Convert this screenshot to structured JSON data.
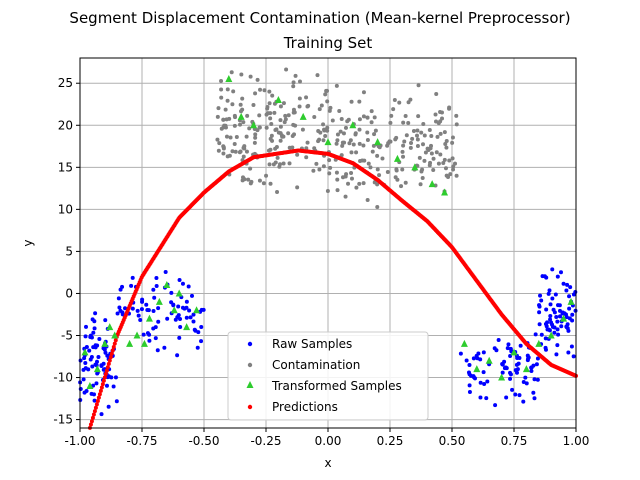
{
  "chart_data": {
    "type": "scatter",
    "title": "Segment Displacement Contamination (Mean-kernel Preprocessor)",
    "subtitle": "Training Set",
    "xlabel": "x",
    "ylabel": "y",
    "xlim": [
      -1.0,
      1.0
    ],
    "ylim": [
      -16,
      28
    ],
    "grid": true,
    "x_ticks": [
      "-1.00",
      "-0.75",
      "-0.50",
      "-0.25",
      "0.00",
      "0.25",
      "0.50",
      "0.75",
      "1.00"
    ],
    "y_ticks": [
      "-15",
      "-10",
      "-5",
      "0",
      "5",
      "10",
      "15",
      "20",
      "25"
    ],
    "legend": {
      "placement": "lower-center",
      "entries": [
        "Raw Samples",
        "Contamination",
        "Transformed Samples",
        "Predictions"
      ]
    },
    "series": [
      {
        "name": "Raw Samples",
        "color": "#0000ff",
        "marker": "circle",
        "clusters": [
          {
            "x_range": [
              -1.0,
              -0.85
            ],
            "y_range": [
              -15,
              -2
            ]
          },
          {
            "x_range": [
              -0.85,
              -0.5
            ],
            "y_range": [
              -8,
              4
            ]
          },
          {
            "x_range": [
              0.53,
              0.85
            ],
            "y_range": [
              -14,
              -4
            ]
          },
          {
            "x_range": [
              0.85,
              1.0
            ],
            "y_range": [
              -8,
              3
            ]
          }
        ]
      },
      {
        "name": "Contamination",
        "color": "#808080",
        "marker": "circle",
        "clusters": [
          {
            "x_range": [
              -0.45,
              0.0
            ],
            "y_range": [
              11,
              28
            ]
          },
          {
            "x_range": [
              0.0,
              0.52
            ],
            "y_range": [
              10,
              25
            ]
          }
        ]
      },
      {
        "name": "Transformed Samples",
        "color": "#2ecc2e",
        "marker": "triangle",
        "points": [
          [
            -0.98,
            -7
          ],
          [
            -0.96,
            -11
          ],
          [
            -0.93,
            -9
          ],
          [
            -0.9,
            -6
          ],
          [
            -0.88,
            -4
          ],
          [
            -0.86,
            -5
          ],
          [
            -0.8,
            -6
          ],
          [
            -0.77,
            -5
          ],
          [
            -0.74,
            -6
          ],
          [
            -0.72,
            -3
          ],
          [
            -0.68,
            -1
          ],
          [
            -0.65,
            1
          ],
          [
            -0.62,
            -2
          ],
          [
            -0.6,
            0
          ],
          [
            -0.57,
            -4
          ],
          [
            -0.53,
            -2
          ],
          [
            -0.4,
            25.5
          ],
          [
            -0.35,
            21
          ],
          [
            -0.3,
            20
          ],
          [
            -0.2,
            23
          ],
          [
            -0.1,
            21
          ],
          [
            0.0,
            18
          ],
          [
            0.1,
            20
          ],
          [
            0.2,
            18
          ],
          [
            0.28,
            16
          ],
          [
            0.35,
            15
          ],
          [
            0.42,
            13
          ],
          [
            0.47,
            12
          ],
          [
            0.55,
            -6
          ],
          [
            0.6,
            -9
          ],
          [
            0.65,
            -8
          ],
          [
            0.7,
            -10
          ],
          [
            0.75,
            -7
          ],
          [
            0.8,
            -9
          ],
          [
            0.85,
            -6
          ],
          [
            0.9,
            -5
          ],
          [
            0.95,
            -3
          ],
          [
            0.98,
            -1
          ]
        ]
      },
      {
        "name": "Predictions",
        "color": "#ff0000",
        "marker": "circle",
        "x_range": [
          -1.0,
          1.0
        ],
        "curve": [
          [
            -0.95,
            -15
          ],
          [
            -0.85,
            -5
          ],
          [
            -0.75,
            2
          ],
          [
            -0.6,
            9
          ],
          [
            -0.5,
            12
          ],
          [
            -0.4,
            14.5
          ],
          [
            -0.3,
            16.2
          ],
          [
            -0.12,
            17
          ],
          [
            0.0,
            16.6
          ],
          [
            0.1,
            15.5
          ],
          [
            0.2,
            13.5
          ],
          [
            0.3,
            11
          ],
          [
            0.4,
            8.6
          ],
          [
            0.5,
            5.5
          ],
          [
            0.6,
            1.5
          ],
          [
            0.7,
            -2.5
          ],
          [
            0.8,
            -6
          ],
          [
            0.9,
            -8.5
          ],
          [
            1.0,
            -9.8
          ]
        ]
      }
    ]
  }
}
